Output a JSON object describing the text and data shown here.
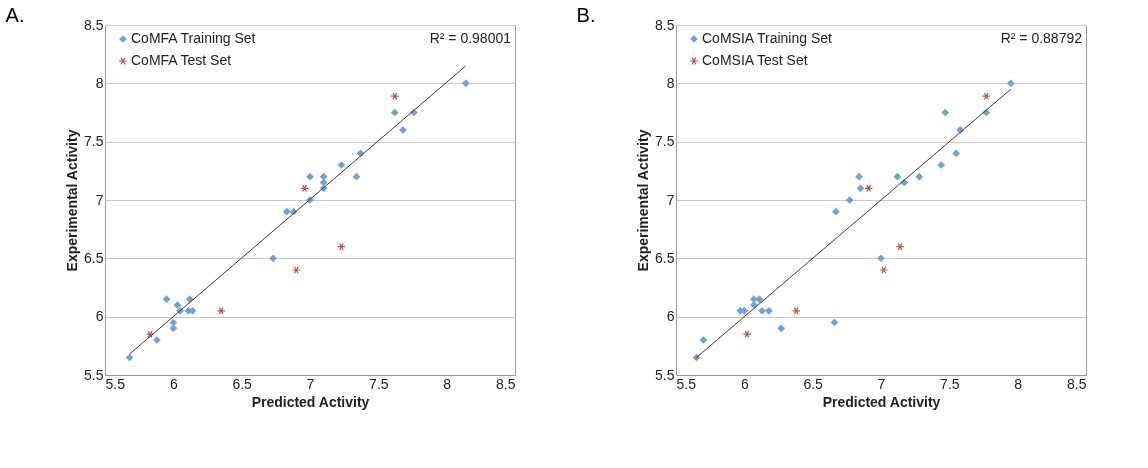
{
  "chart_data": [
    {
      "type": "scatter",
      "title": "A.",
      "xlabel": "Predicted Activity",
      "ylabel": "Experimental Activity",
      "xlim": [
        5.5,
        8.5
      ],
      "xticks": [
        5.5,
        6,
        6.5,
        7,
        7.5,
        8,
        8.5
      ],
      "ylim": [
        5.5,
        8.5
      ],
      "yticks": [
        5.5,
        6,
        6.5,
        7,
        7.5,
        8,
        8.5
      ],
      "grid": "y",
      "legend": "top left",
      "annotations": [
        "R² = 0.98001"
      ],
      "series": [
        {
          "name": "CoMFA Training Set",
          "color": "#6fa1dc",
          "marker": "diamond",
          "x": [
            5.68,
            5.88,
            5.95,
            6.0,
            6.0,
            6.03,
            6.05,
            6.12,
            6.14,
            6.11,
            6.73,
            6.83,
            6.88,
            7.0,
            7.0,
            7.1,
            7.1,
            7.1,
            7.23,
            7.34,
            7.37,
            7.62,
            7.68,
            7.76,
            8.14
          ],
          "values": [
            5.65,
            5.8,
            6.15,
            5.9,
            5.95,
            6.1,
            6.05,
            6.15,
            6.05,
            6.05,
            6.5,
            6.9,
            6.9,
            7.0,
            7.2,
            7.2,
            7.15,
            7.1,
            7.3,
            7.2,
            7.4,
            7.75,
            7.6,
            7.75,
            8.0
          ]
        },
        {
          "name": "CoMFA Test Set",
          "color": "#c0504d",
          "marker": "cross",
          "x": [
            5.83,
            6.35,
            6.9,
            6.96,
            7.23,
            7.62
          ],
          "values": [
            5.85,
            6.05,
            6.4,
            7.1,
            6.6,
            7.89
          ]
        },
        {
          "type": "line",
          "color": "#404040",
          "x": [
            5.68,
            8.14
          ],
          "values": [
            5.68,
            8.15
          ]
        }
      ]
    },
    {
      "type": "scatter",
      "title": "B.",
      "xlabel": "Predicted Activity",
      "ylabel": "Experimental Activity",
      "xlim": [
        5.5,
        8.5
      ],
      "xticks": [
        5.5,
        6,
        6.5,
        7,
        7.5,
        8,
        8.5
      ],
      "ylim": [
        5.5,
        8.5
      ],
      "yticks": [
        5.5,
        6,
        6.5,
        7,
        7.5,
        8,
        8.5
      ],
      "grid": "y",
      "legend": "top left",
      "annotations": [
        "R² = 0.88792"
      ],
      "series": [
        {
          "name": "CoMSIA Training Set",
          "color": "#6fa1dc",
          "marker": "diamond",
          "x": [
            5.65,
            5.7,
            5.97,
            6.0,
            6.07,
            6.07,
            6.11,
            6.13,
            6.18,
            6.27,
            6.66,
            6.67,
            6.77,
            6.84,
            6.85,
            7.0,
            7.12,
            7.17,
            7.28,
            7.44,
            7.47,
            7.55,
            7.58,
            7.77,
            7.95
          ],
          "values": [
            5.65,
            5.8,
            6.05,
            6.05,
            6.1,
            6.15,
            6.15,
            6.05,
            6.05,
            5.9,
            5.95,
            6.9,
            7.0,
            7.2,
            7.1,
            6.5,
            7.2,
            7.15,
            7.2,
            7.3,
            7.75,
            7.4,
            7.6,
            7.75,
            8.0
          ]
        },
        {
          "name": "CoMSIA Test Set",
          "color": "#c0504d",
          "marker": "cross",
          "x": [
            6.02,
            6.38,
            6.91,
            7.02,
            7.14,
            7.77
          ],
          "values": [
            5.85,
            6.05,
            7.1,
            6.4,
            6.6,
            7.89
          ]
        },
        {
          "type": "line",
          "color": "#404040",
          "x": [
            5.65,
            7.95
          ],
          "values": [
            5.65,
            7.95
          ]
        }
      ]
    }
  ]
}
